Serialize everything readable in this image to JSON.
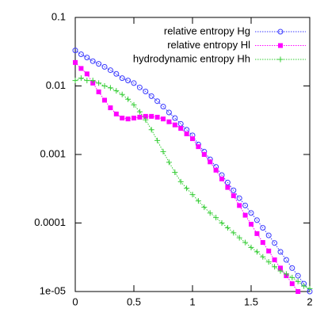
{
  "chart_data": {
    "type": "line",
    "log_y": true,
    "x": [
      0,
      0.05,
      0.1,
      0.15,
      0.2,
      0.25,
      0.3,
      0.35,
      0.4,
      0.45,
      0.5,
      0.55,
      0.6,
      0.65,
      0.7,
      0.75,
      0.8,
      0.85,
      0.9,
      0.95,
      1,
      1.05,
      1.1,
      1.15,
      1.2,
      1.25,
      1.3,
      1.35,
      1.4,
      1.45,
      1.5,
      1.55,
      1.6,
      1.65,
      1.7,
      1.75,
      1.8,
      1.85,
      1.9,
      1.95,
      2
    ],
    "xlim": [
      0,
      2
    ],
    "xticks": [
      0,
      0.5,
      1,
      1.5,
      2
    ],
    "ylim": [
      1e-05,
      0.1
    ],
    "yticks": [
      {
        "value": 1e-05,
        "label": "1e-05"
      },
      0.0001,
      0.001,
      0.01,
      0.1
    ],
    "legend": "top-right",
    "series": [
      {
        "name": "relative entropy Hg",
        "color": "#3a3aff",
        "marker": "circle",
        "values": [
          0.033,
          0.029,
          0.026,
          0.023,
          0.021,
          0.019,
          0.017,
          0.015,
          0.013,
          0.012,
          0.011,
          0.0095,
          0.0083,
          0.0071,
          0.006,
          0.005,
          0.0041,
          0.0034,
          0.0028,
          0.0023,
          0.0019,
          0.0014,
          0.0011,
          0.00085,
          0.00066,
          0.0005,
          0.00039,
          0.0003,
          0.00023,
          0.00018,
          0.00014,
          0.00011,
          8.5e-05,
          6.6e-05,
          5.1e-05,
          3.8e-05,
          2.9e-05,
          2.2e-05,
          1.7e-05,
          1.3e-05,
          1e-05
        ]
      },
      {
        "name": "relative entropy Hl",
        "color": "#ff00ff",
        "marker": "square",
        "values": [
          0.022,
          0.018,
          0.015,
          0.011,
          0.0082,
          0.0062,
          0.0048,
          0.0039,
          0.0034,
          0.0033,
          0.0034,
          0.0035,
          0.0036,
          0.0036,
          0.0035,
          0.0033,
          0.003,
          0.0027,
          0.0024,
          0.002,
          0.0017,
          0.0013,
          0.001,
          0.00078,
          0.00059,
          0.00044,
          0.00033,
          0.00025,
          0.00018,
          0.00013,
          9.6e-05,
          7e-05,
          5.2e-05,
          3.9e-05,
          2.9e-05,
          2.2e-05,
          1.7e-05,
          1.3e-05,
          1e-05,
          null,
          null
        ]
      },
      {
        "name": "hydrodynamic entropy Hh",
        "color": "#33cc33",
        "marker": "plus",
        "values": [
          0.012,
          0.013,
          0.012,
          0.012,
          0.011,
          0.01,
          0.0094,
          0.0085,
          0.0075,
          0.0064,
          0.0053,
          0.0042,
          0.0032,
          0.0023,
          0.0016,
          0.0011,
          0.00077,
          0.00055,
          0.0004,
          0.00032,
          0.00026,
          0.00021,
          0.00017,
          0.00014,
          0.00012,
          0.0001,
          8.5e-05,
          7.2e-05,
          6.1e-05,
          5.2e-05,
          4.4e-05,
          3.8e-05,
          3.2e-05,
          2.7e-05,
          2.3e-05,
          2e-05,
          1.8e-05,
          1.6e-05,
          1.4e-05,
          1.2e-05,
          1.1e-05
        ]
      }
    ]
  }
}
